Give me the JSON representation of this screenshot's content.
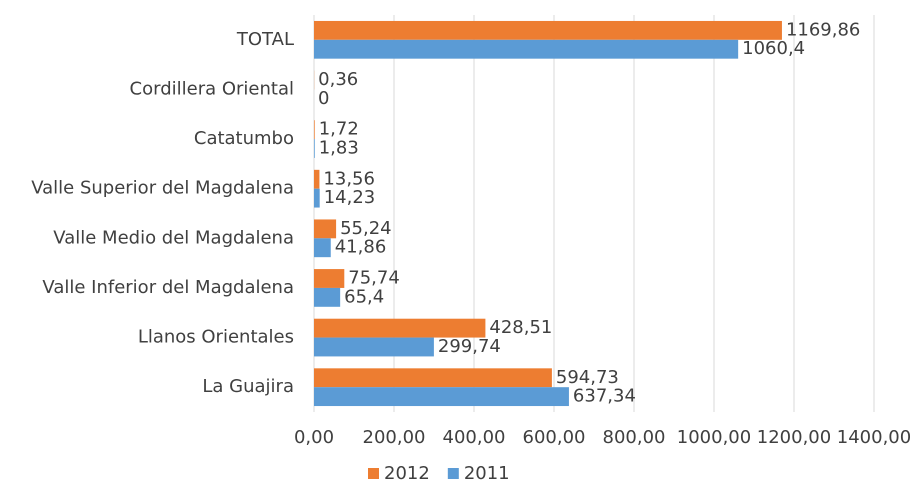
{
  "chart_data": {
    "type": "hbar",
    "categories": [
      "TOTAL",
      "Cordillera Oriental",
      "Catatumbo",
      "Valle Superior del Magdalena",
      "Valle Medio del Magdalena",
      "Valle Inferior del Magdalena",
      "Llanos Orientales",
      "La Guajira"
    ],
    "series": [
      {
        "name": "2012",
        "color": "#ed7d31",
        "values": [
          1169.86,
          0.36,
          1.72,
          13.56,
          55.24,
          75.74,
          428.51,
          594.73
        ],
        "value_labels": [
          "1169,86",
          "0,36",
          "1,72",
          "13,56",
          "55,24",
          "75,74",
          "428,51",
          "594,73"
        ]
      },
      {
        "name": "2011",
        "color": "#5b9bd5",
        "values": [
          1060.4,
          0,
          1.83,
          14.23,
          41.86,
          65.4,
          299.74,
          637.34
        ],
        "value_labels": [
          "1060,4",
          "0",
          "1,83",
          "14,23",
          "41,86",
          "65,4",
          "299,74",
          "637,34"
        ]
      }
    ],
    "xlim": [
      0,
      1400
    ],
    "xticks": [
      {
        "value": 0,
        "label": "0,00"
      },
      {
        "value": 200,
        "label": "200,00"
      },
      {
        "value": 400,
        "label": "400,00"
      },
      {
        "value": 600,
        "label": "600,00"
      },
      {
        "value": 800,
        "label": "800,00"
      },
      {
        "value": 1000,
        "label": "1000,00"
      },
      {
        "value": 1200,
        "label": "1200,00"
      },
      {
        "value": 1400,
        "label": "1400,00"
      }
    ],
    "grid": true,
    "legend": "bottom"
  }
}
